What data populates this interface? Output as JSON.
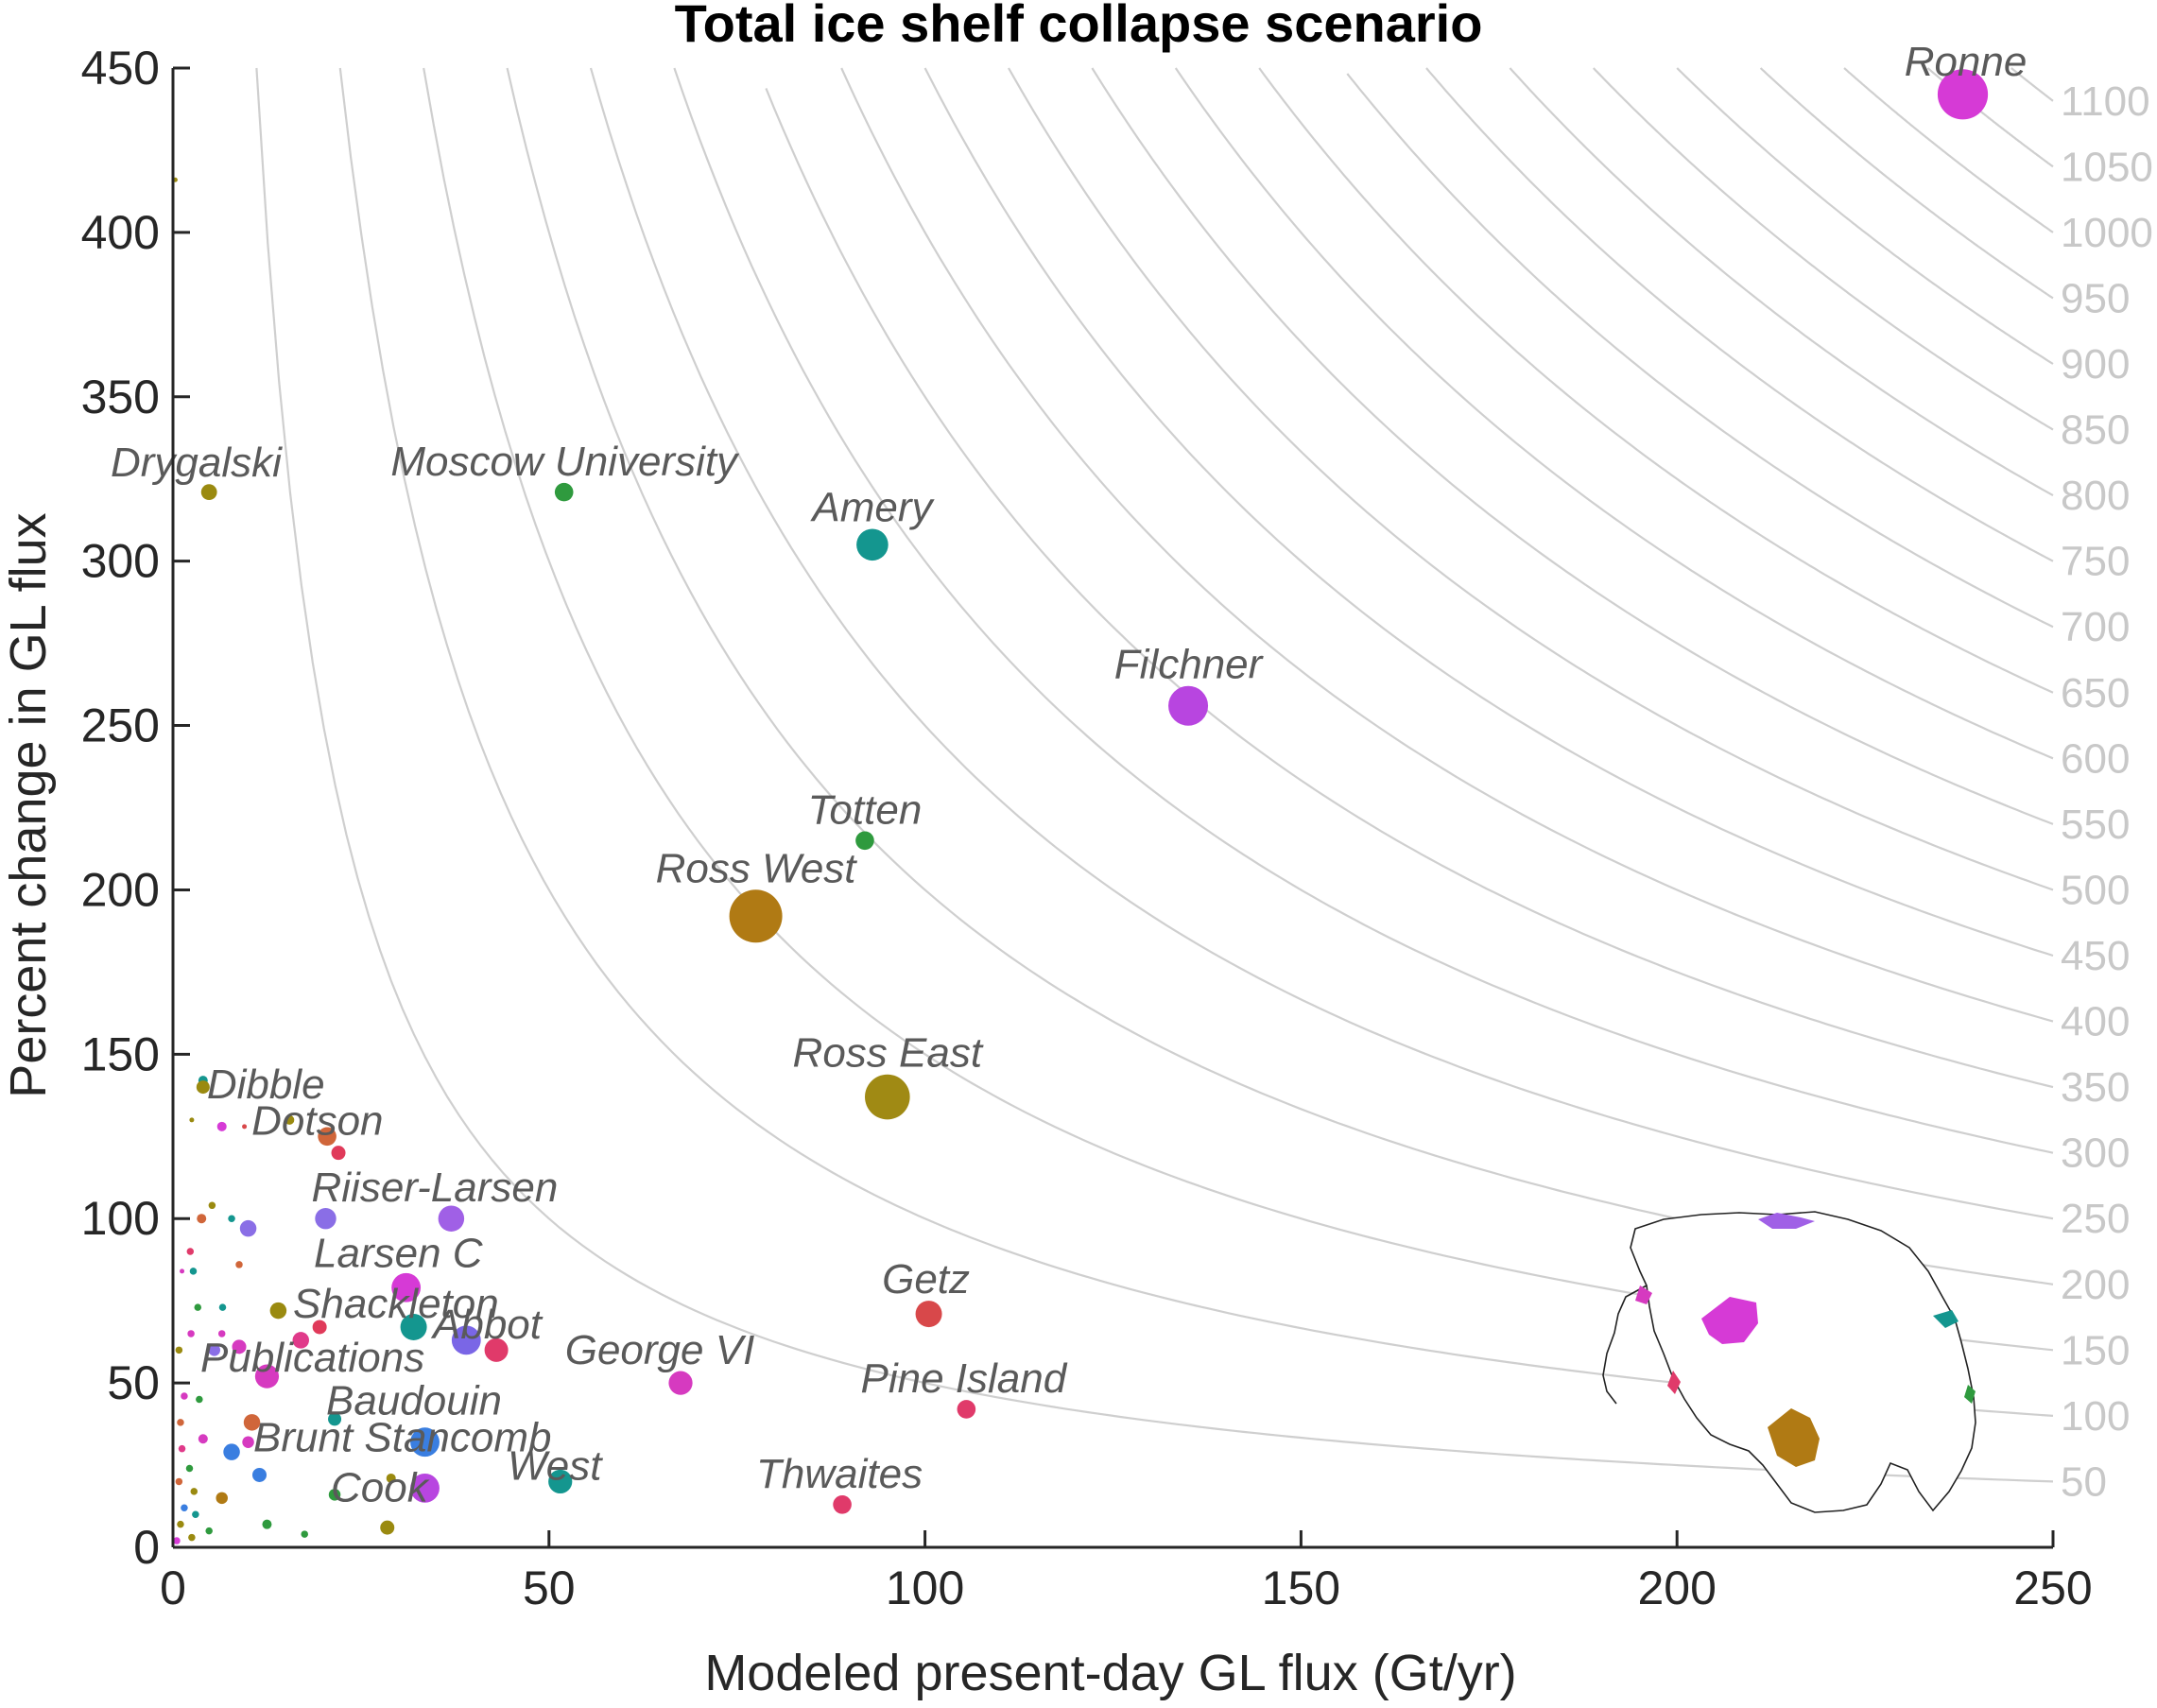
{
  "chart_data": {
    "type": "scatter",
    "title": "Total ice shelf collapse scenario",
    "xlabel": "Modeled present-day GL flux (Gt/yr)",
    "ylabel": "Percent change in GL flux",
    "xlim": [
      0,
      250
    ],
    "ylim": [
      0,
      450
    ],
    "xticks": [
      "0",
      "50",
      "100",
      "150",
      "200",
      "250"
    ],
    "yticks": [
      "0",
      "50",
      "100",
      "150",
      "200",
      "250",
      "300",
      "350",
      "400",
      "450"
    ],
    "contours": {
      "description": "lines of constant absolute flux change (Gt/yr)",
      "levels": [
        50,
        100,
        150,
        200,
        250,
        300,
        350,
        400,
        450,
        500,
        550,
        600,
        650,
        700,
        750,
        800,
        850,
        900,
        950,
        1000,
        1050,
        1100
      ],
      "labels": [
        "50",
        "100",
        "150",
        "200",
        "250",
        "300",
        "350",
        "400",
        "450",
        "500",
        "550",
        "600",
        "650",
        "700",
        "750",
        "800",
        "850",
        "900",
        "950",
        "1000",
        "1050",
        "1100"
      ]
    },
    "labeled_points": [
      {
        "label": "Ronne",
        "x": 238,
        "y": 442,
        "size": 19,
        "color": "#d63ad6"
      },
      {
        "label": "Drygalski",
        "x": 4.8,
        "y": 321,
        "size": 6,
        "color": "#9a8a10"
      },
      {
        "label": "Moscow University",
        "x": 52,
        "y": 321,
        "size": 7,
        "color": "#2f9a3e"
      },
      {
        "label": "Amery",
        "x": 93,
        "y": 305,
        "size": 12,
        "color": "#14968f"
      },
      {
        "label": "Filchner",
        "x": 135,
        "y": 256,
        "size": 15,
        "color": "#b845e0"
      },
      {
        "label": "Totten",
        "x": 92,
        "y": 215,
        "size": 7,
        "color": "#2f9a3e"
      },
      {
        "label": "Ross West",
        "x": 77.5,
        "y": 192,
        "size": 20,
        "color": "#b07a14"
      },
      {
        "label": "Ross East",
        "x": 95,
        "y": 137,
        "size": 17,
        "color": "#a08a14"
      },
      {
        "label": "Dibble",
        "x": 4,
        "y": 140,
        "size": 5,
        "color": "#9a8a10"
      },
      {
        "label": "Dotson",
        "x": 20.5,
        "y": 125,
        "size": 7,
        "color": "#d0663a"
      },
      {
        "label": "Riiser-Larsen",
        "x": 20.3,
        "y": 100,
        "size": 8,
        "color": "#8a6ee6"
      },
      {
        "label": "Larsen C",
        "x": 31,
        "y": 79,
        "size": 11,
        "color": "#d63ad6"
      },
      {
        "label": "Shackleton",
        "x": 32,
        "y": 67,
        "size": 10,
        "color": "#14968f"
      },
      {
        "label": "Abbot",
        "x": 39,
        "y": 63,
        "size": 11,
        "color": "#7a66e6"
      },
      {
        "label": "Getz",
        "x": 100.5,
        "y": 71,
        "size": 10,
        "color": "#d8484a"
      },
      {
        "label": "George VI",
        "x": 67.5,
        "y": 50,
        "size": 9,
        "color": "#d63ac0"
      },
      {
        "label": "Pine Island",
        "x": 105.5,
        "y": 42,
        "size": 7,
        "color": "#e03a6a"
      },
      {
        "label": "Publications",
        "x": 12.5,
        "y": 52,
        "size": 9,
        "color": "#d63ac0"
      },
      {
        "label": "Baudouin",
        "x": 21.5,
        "y": 39,
        "size": 5,
        "color": "#14968f"
      },
      {
        "label": "Brunt Stancomb",
        "x": 33.5,
        "y": 32,
        "size": 11,
        "color": "#3a7ee0"
      },
      {
        "label": "West",
        "x": 51.5,
        "y": 20,
        "size": 9,
        "color": "#14968f"
      },
      {
        "label": "Thwaites",
        "x": 89,
        "y": 13,
        "size": 7,
        "color": "#e03a6a"
      },
      {
        "label": "Cook",
        "x": 33.5,
        "y": 18,
        "size": 11,
        "color": "#b845e0"
      }
    ],
    "unlabeled_points": [
      {
        "x": 0.3,
        "y": 416,
        "size": 2,
        "color": "#9a8a10"
      },
      {
        "x": 43,
        "y": 60,
        "size": 10,
        "color": "#e03a6a"
      },
      {
        "x": 37,
        "y": 100,
        "size": 11,
        "color": "#a060e6"
      },
      {
        "x": 22,
        "y": 120,
        "size": 6,
        "color": "#e03a5a"
      },
      {
        "x": 4,
        "y": 142,
        "size": 4,
        "color": "#14968f"
      },
      {
        "x": 6.5,
        "y": 128,
        "size": 4,
        "color": "#d63ad6"
      },
      {
        "x": 2.5,
        "y": 130,
        "size": 2,
        "color": "#9a8a10"
      },
      {
        "x": 9.5,
        "y": 128,
        "size": 2,
        "color": "#d8484a"
      },
      {
        "x": 15.5,
        "y": 130,
        "size": 4,
        "color": "#9a8a10"
      },
      {
        "x": 10,
        "y": 97,
        "size": 7,
        "color": "#8a6ee6"
      },
      {
        "x": 14,
        "y": 72,
        "size": 7,
        "color": "#9a8a10"
      },
      {
        "x": 19.5,
        "y": 67,
        "size": 6,
        "color": "#e03a5a"
      },
      {
        "x": 17,
        "y": 63,
        "size": 7,
        "color": "#e03a8a"
      },
      {
        "x": 8.8,
        "y": 61,
        "size": 6,
        "color": "#d63ac0"
      },
      {
        "x": 10.5,
        "y": 38,
        "size": 7,
        "color": "#d0663a"
      },
      {
        "x": 7.8,
        "y": 29,
        "size": 7,
        "color": "#3a7ee0"
      },
      {
        "x": 11.5,
        "y": 22,
        "size": 6,
        "color": "#3a7ee0"
      },
      {
        "x": 10,
        "y": 32,
        "size": 5,
        "color": "#d63ac0"
      },
      {
        "x": 6.5,
        "y": 15,
        "size": 5,
        "color": "#b07a14"
      },
      {
        "x": 21.5,
        "y": 16,
        "size": 5,
        "color": "#2f9a3e"
      },
      {
        "x": 28.5,
        "y": 6,
        "size": 6,
        "color": "#9a8a10"
      },
      {
        "x": 29,
        "y": 21,
        "size": 4,
        "color": "#9a8a10"
      },
      {
        "x": 12.5,
        "y": 7,
        "size": 4,
        "color": "#2f9a3e"
      },
      {
        "x": 17.5,
        "y": 4,
        "size": 3,
        "color": "#2f9a3e"
      },
      {
        "x": 5.5,
        "y": 60,
        "size": 5,
        "color": "#8a6ee6"
      },
      {
        "x": 6.5,
        "y": 65,
        "size": 3,
        "color": "#d63ac0"
      },
      {
        "x": 3.8,
        "y": 100,
        "size": 4,
        "color": "#d0663a"
      },
      {
        "x": 5.2,
        "y": 104,
        "size": 3,
        "color": "#9a8a10"
      },
      {
        "x": 7.8,
        "y": 100,
        "size": 3,
        "color": "#14968f"
      },
      {
        "x": 2.3,
        "y": 90,
        "size": 3,
        "color": "#e03a6a"
      },
      {
        "x": 8.8,
        "y": 86,
        "size": 3,
        "color": "#d0663a"
      },
      {
        "x": 2.7,
        "y": 84,
        "size": 3,
        "color": "#14968f"
      },
      {
        "x": 1.2,
        "y": 84,
        "size": 2,
        "color": "#d63ac0"
      },
      {
        "x": 3.3,
        "y": 73,
        "size": 3,
        "color": "#2f9a3e"
      },
      {
        "x": 6.6,
        "y": 73,
        "size": 3,
        "color": "#14968f"
      },
      {
        "x": 2.4,
        "y": 65,
        "size": 3,
        "color": "#d63ac0"
      },
      {
        "x": 0.8,
        "y": 60,
        "size": 3,
        "color": "#9a8a10"
      },
      {
        "x": 3.5,
        "y": 45,
        "size": 3,
        "color": "#2f9a3e"
      },
      {
        "x": 1.5,
        "y": 46,
        "size": 3,
        "color": "#d63ac0"
      },
      {
        "x": 1.0,
        "y": 38,
        "size": 3,
        "color": "#d0663a"
      },
      {
        "x": 4.0,
        "y": 33,
        "size": 4,
        "color": "#d63ac0"
      },
      {
        "x": 1.2,
        "y": 30,
        "size": 3,
        "color": "#e03a8a"
      },
      {
        "x": 2.2,
        "y": 24,
        "size": 3,
        "color": "#2f9a3e"
      },
      {
        "x": 0.8,
        "y": 20,
        "size": 3,
        "color": "#d0663a"
      },
      {
        "x": 2.8,
        "y": 17,
        "size": 3,
        "color": "#9a8a10"
      },
      {
        "x": 1.5,
        "y": 12,
        "size": 3,
        "color": "#3a7ee0"
      },
      {
        "x": 3.0,
        "y": 10,
        "size": 3,
        "color": "#14968f"
      },
      {
        "x": 1.0,
        "y": 7,
        "size": 3,
        "color": "#9a8a10"
      },
      {
        "x": 4.8,
        "y": 5,
        "size": 3,
        "color": "#2f9a3e"
      },
      {
        "x": 2.5,
        "y": 3,
        "size": 3,
        "color": "#9a8a10"
      },
      {
        "x": 0.5,
        "y": 2,
        "size": 3,
        "color": "#d63ad6"
      }
    ],
    "inset": "map-of-antarctica-ice-shelves",
    "grid": false,
    "legend": "none"
  }
}
